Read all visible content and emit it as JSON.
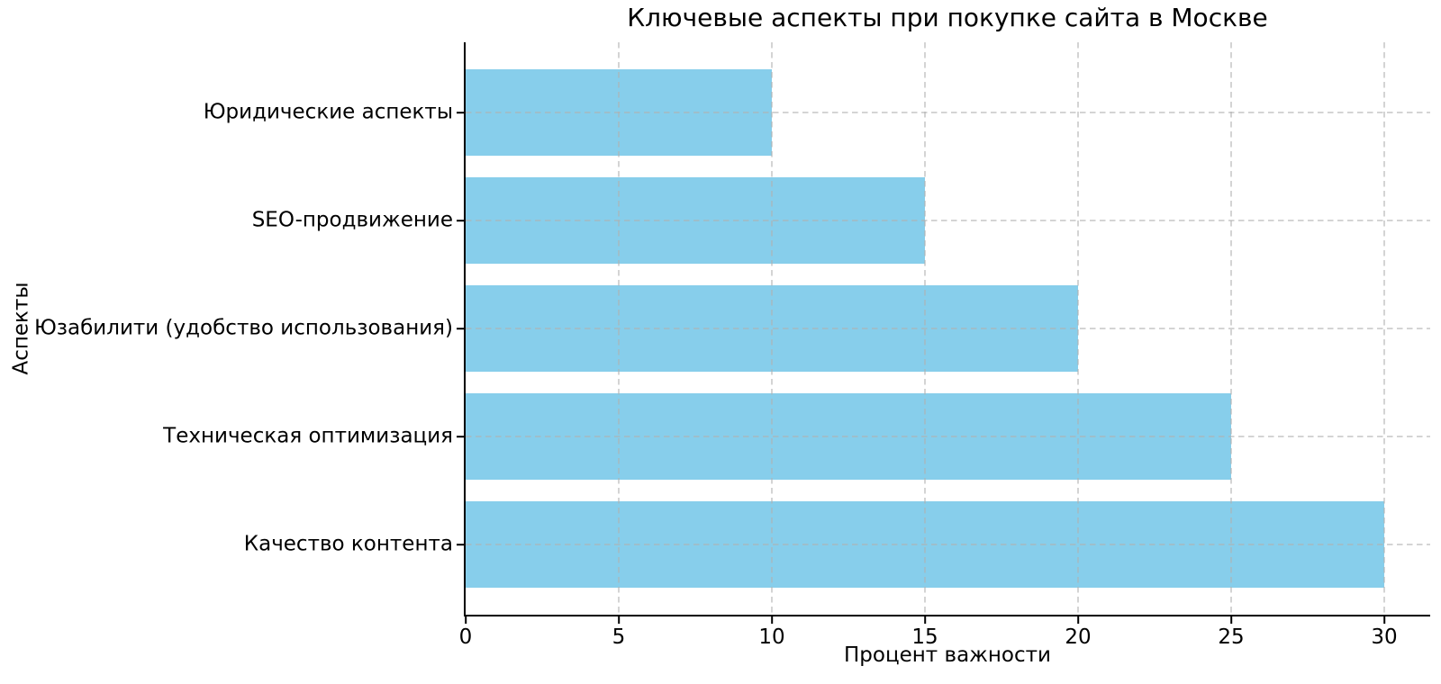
{
  "chart_data": {
    "type": "bar",
    "orientation": "horizontal",
    "title": "Ключевые аспекты при покупке сайта в Москве",
    "xlabel": "Процент важности",
    "ylabel": "Аспекты",
    "order": "top-to-bottom",
    "categories": [
      "Юридические аспекты",
      "SEO-продвижение",
      "Юзабилити (удобство использования)",
      "Техническая оптимизация",
      "Качество контента"
    ],
    "values": [
      10,
      15,
      20,
      25,
      30
    ],
    "xticks": [
      0,
      5,
      10,
      15,
      20,
      25,
      30
    ],
    "xlim": [
      0,
      31.5
    ],
    "bar_thickness_fraction": 0.8,
    "grid": true,
    "grid_linestyle": "dashed",
    "grid_above_bars": true,
    "legend": false,
    "spines": [
      "left",
      "bottom"
    ],
    "colors": {
      "bar": "#87CEEB",
      "grid": "rgba(176,176,176,0.55)",
      "spine": "#000000",
      "text": "#000000",
      "background": "#ffffff"
    }
  }
}
